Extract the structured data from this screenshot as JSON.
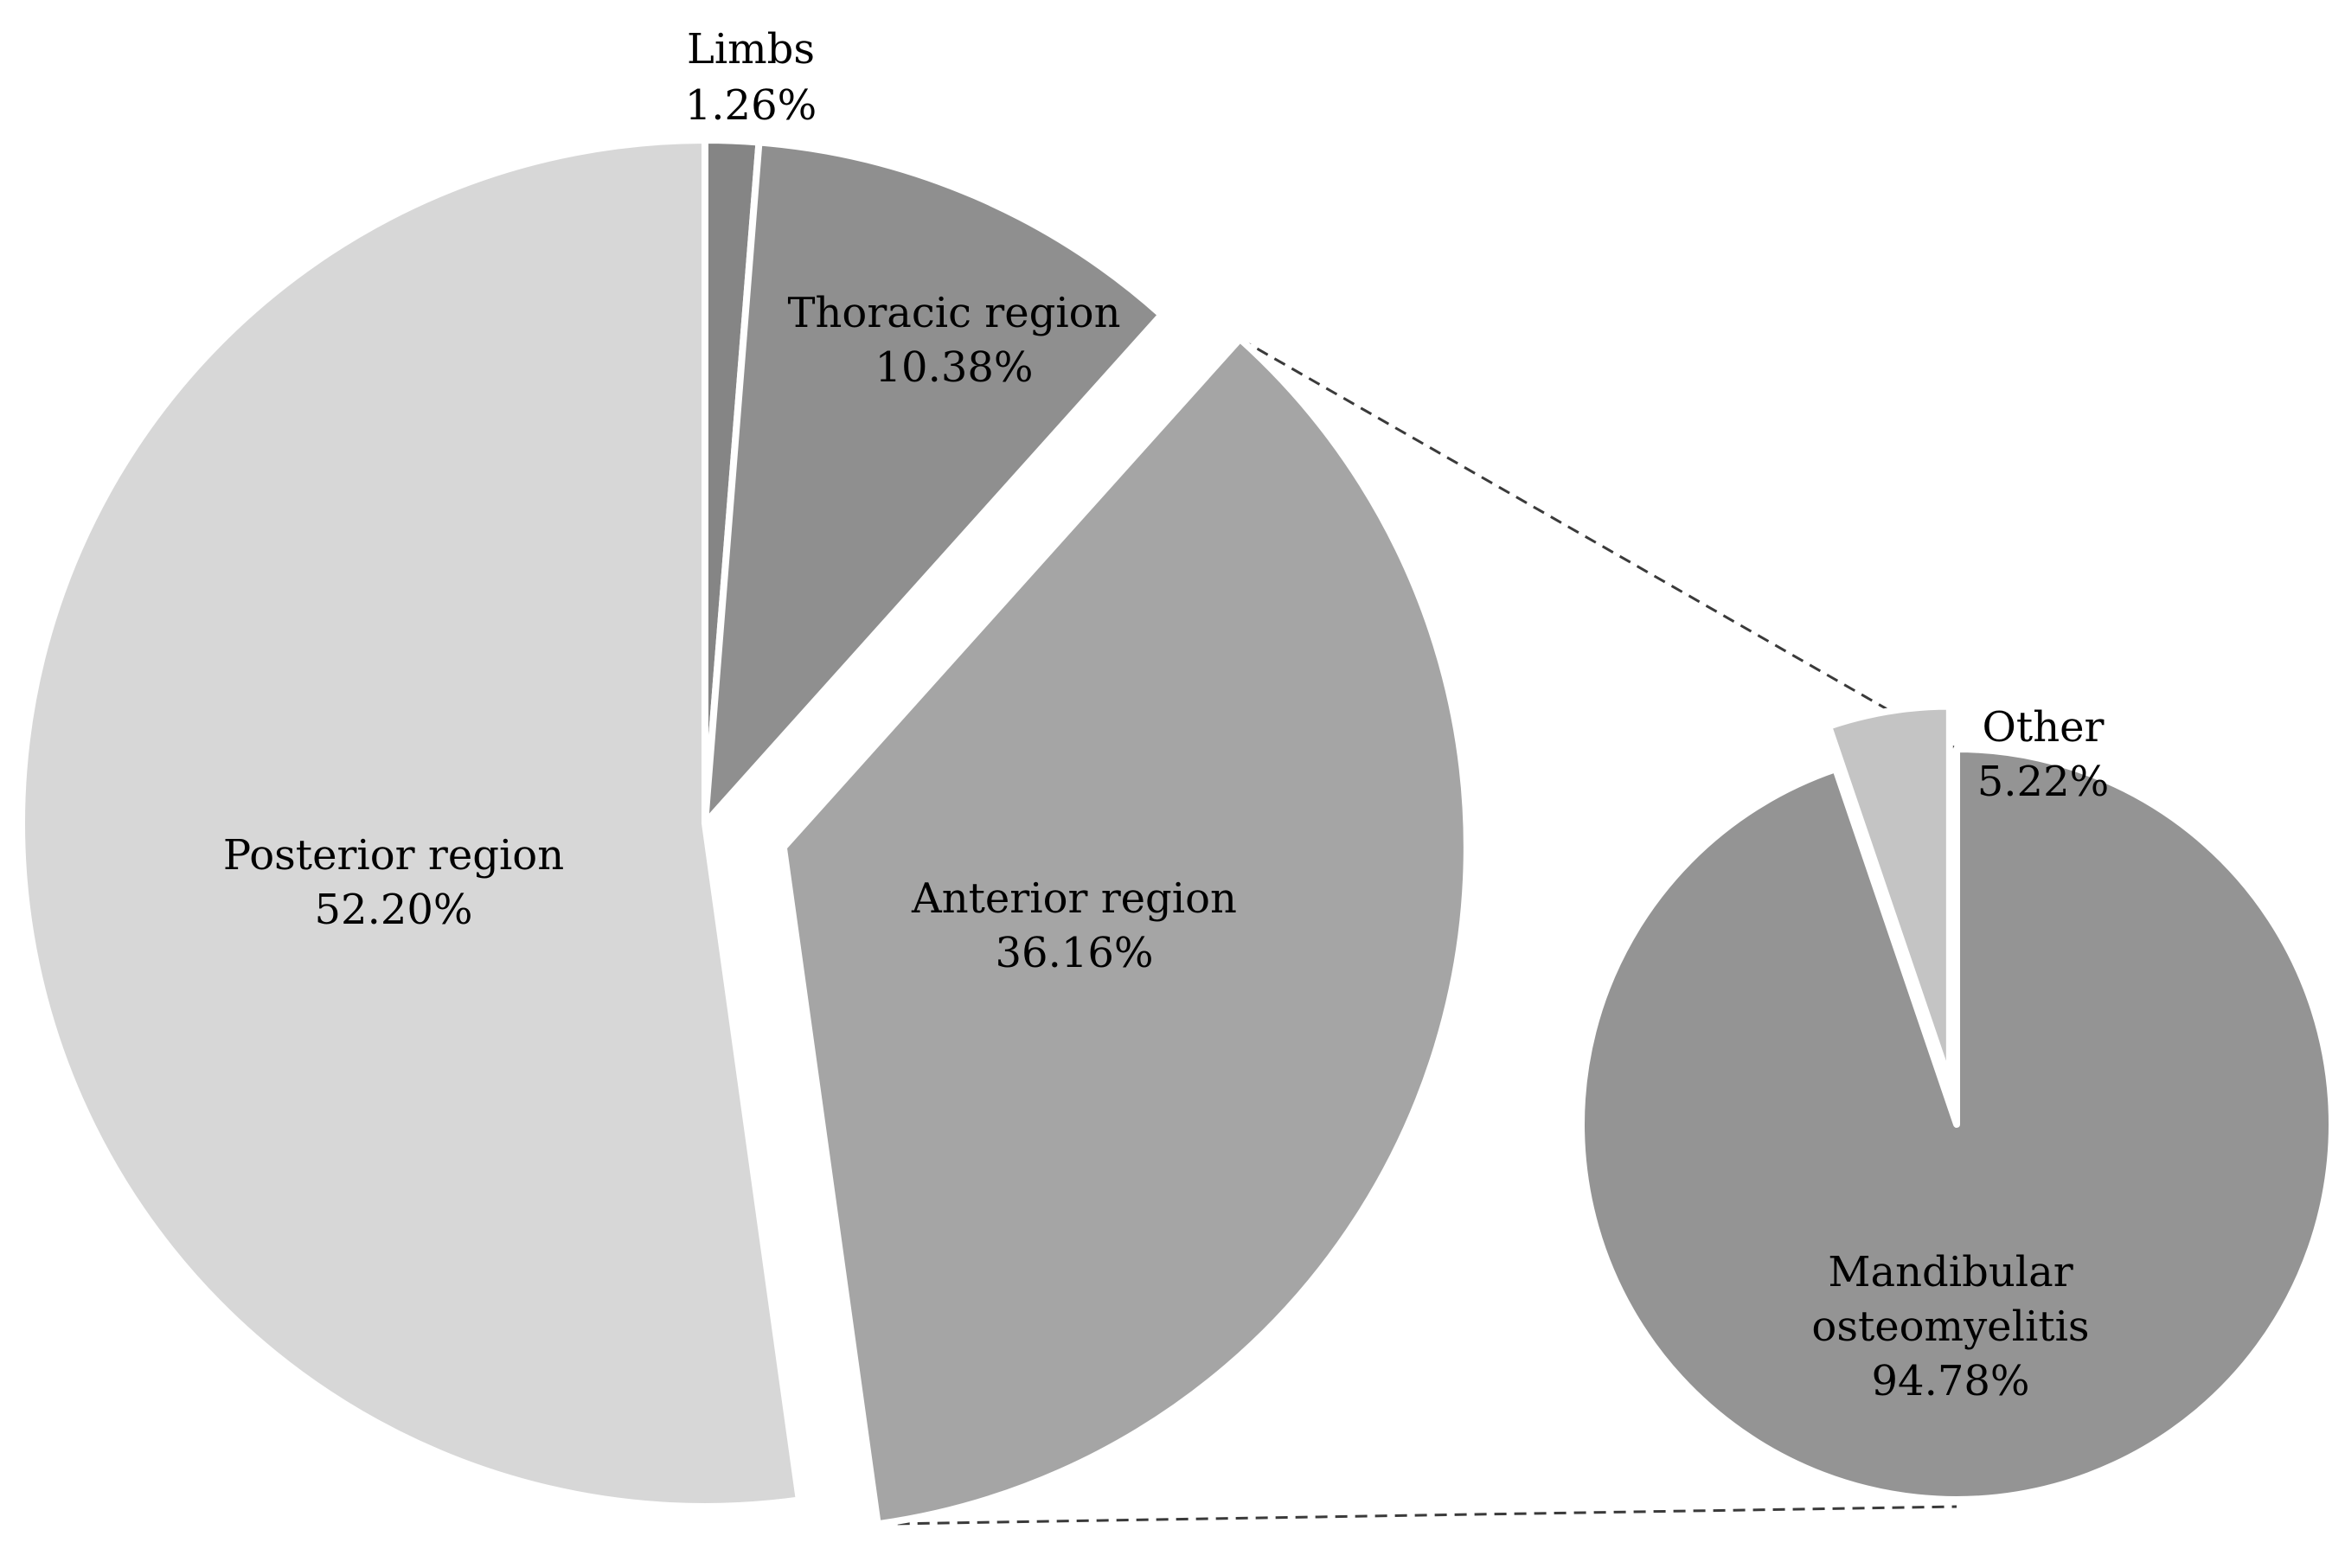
{
  "colors": {
    "background": "#ffffff",
    "limbs": "#858585",
    "thoracic": "#8f8f8f",
    "anterior": "#a5a5a5",
    "posterior": "#d7d7d7",
    "mandibular": "#949494",
    "other": "#c4c4c4",
    "connector": "#3a3a3a",
    "separator": "#ffffff"
  },
  "chart_data": [
    {
      "type": "pie",
      "title": "",
      "slices": [
        {
          "label": "Limbs",
          "value": 1.26,
          "value_label": "1.26%",
          "color_key": "limbs",
          "exploded": false
        },
        {
          "label": "Thoracic region",
          "value": 10.38,
          "value_label": "10.38%",
          "color_key": "thoracic",
          "exploded": false
        },
        {
          "label": "Anterior region",
          "value": 36.16,
          "value_label": "36.16%",
          "color_key": "anterior",
          "exploded": true
        },
        {
          "label": "Posterior region",
          "value": 52.2,
          "value_label": "52.20%",
          "color_key": "posterior",
          "exploded": false
        }
      ],
      "start": "12 o'clock",
      "direction": "clockwise"
    },
    {
      "type": "pie",
      "title": "",
      "detail_of": "Anterior region",
      "slices": [
        {
          "label": "Mandibular osteomyelitis",
          "value": 94.78,
          "value_label": "94.78%",
          "color_key": "mandibular",
          "exploded": false
        },
        {
          "label": "Other",
          "value": 5.22,
          "value_label": "5.22%",
          "color_key": "other",
          "exploded": true
        }
      ],
      "start": "12 o'clock",
      "direction": "clockwise"
    }
  ]
}
